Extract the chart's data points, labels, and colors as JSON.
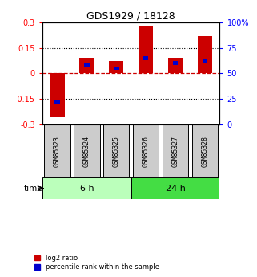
{
  "title": "GDS1929 / 18128",
  "samples": [
    "GSM85323",
    "GSM85324",
    "GSM85325",
    "GSM85326",
    "GSM85327",
    "GSM85328"
  ],
  "log2_ratio": [
    -0.255,
    0.09,
    0.075,
    0.275,
    0.09,
    0.22
  ],
  "percentile_rank": [
    22,
    58,
    55,
    65,
    60,
    62
  ],
  "groups": [
    {
      "label": "6 h",
      "indices": [
        0,
        1,
        2
      ],
      "color": "#bbffbb"
    },
    {
      "label": "24 h",
      "indices": [
        3,
        4,
        5
      ],
      "color": "#44dd44"
    }
  ],
  "ylim": [
    -0.3,
    0.3
  ],
  "yticks_left": [
    -0.3,
    -0.15,
    0,
    0.15,
    0.3
  ],
  "yticks_right": [
    0,
    25,
    50,
    75,
    100
  ],
  "bar_color": "#cc0000",
  "percentile_color": "#0000cc",
  "bar_width": 0.5,
  "percentile_bar_width": 0.18,
  "dot_grid_color": "#000000",
  "zero_line_color": "#cc0000",
  "legend_labels": [
    "log2 ratio",
    "percentile rank within the sample"
  ],
  "background_color": "#ffffff",
  "sample_box_color": "#cccccc",
  "time_label": "time"
}
